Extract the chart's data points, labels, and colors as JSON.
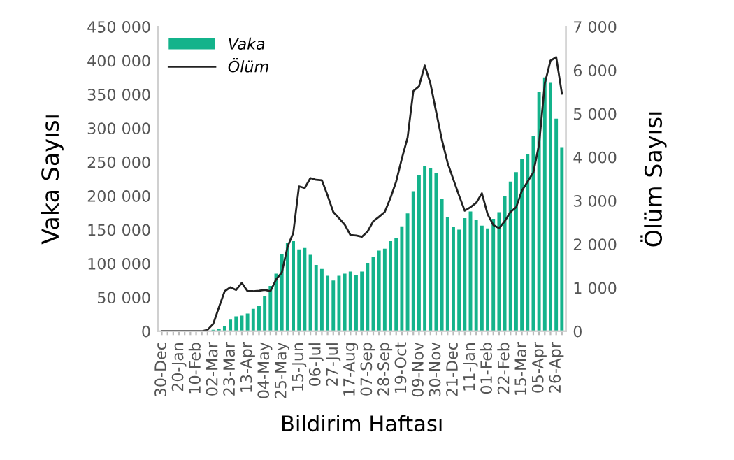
{
  "chart_data": {
    "type": "bar",
    "categories": [
      "30-Dec",
      null,
      null,
      "20-Jan",
      null,
      null,
      "10-Feb",
      null,
      null,
      "02-Mar",
      null,
      null,
      "23-Mar",
      null,
      null,
      "13-Apr",
      null,
      null,
      "04-May",
      null,
      null,
      "25-May",
      null,
      null,
      "15-Jun",
      null,
      null,
      "06-Jul",
      null,
      null,
      "27-Jul",
      null,
      null,
      "17-Aug",
      null,
      null,
      "07-Sep",
      null,
      null,
      "28-Sep",
      null,
      null,
      "19-Oct",
      null,
      null,
      "09-Nov",
      null,
      null,
      "30-Nov",
      null,
      null,
      "21-Dec",
      null,
      null,
      "11-Jan",
      null,
      null,
      "01-Feb",
      null,
      null,
      "22-Feb",
      null,
      null,
      "15-Mar",
      null,
      null,
      "05-Apr",
      null,
      null,
      "26-Apr",
      null
    ],
    "series": [
      {
        "name": "Vaka",
        "color": "#13b38b",
        "values": [
          0,
          0,
          0,
          0,
          0,
          0,
          0,
          0,
          0,
          2000,
          3000,
          8000,
          17000,
          22000,
          23000,
          26000,
          33000,
          37000,
          52000,
          67000,
          85000,
          114000,
          130000,
          133000,
          121000,
          123000,
          113000,
          98000,
          92000,
          82000,
          75000,
          82000,
          85000,
          88000,
          83000,
          88000,
          101000,
          110000,
          119000,
          122000,
          133000,
          138000,
          155000,
          174000,
          207000,
          231000,
          244000,
          241000,
          234000,
          195000,
          169000,
          154000,
          150000,
          167000,
          177000,
          165000,
          156000,
          152000,
          166000,
          176000,
          200000,
          221000,
          235000,
          255000,
          262000,
          289000,
          354000,
          375000,
          367000,
          314000,
          272000
        ]
      },
      {
        "name": "Ölüm",
        "type": "line",
        "axis": "y2",
        "color": "#222222",
        "values": [
          0,
          0,
          0,
          0,
          0,
          0,
          0,
          0,
          30,
          170,
          550,
          920,
          1010,
          950,
          1110,
          920,
          920,
          930,
          950,
          920,
          1190,
          1350,
          1940,
          2260,
          3330,
          3290,
          3520,
          3480,
          3470,
          3120,
          2740,
          2600,
          2450,
          2210,
          2200,
          2170,
          2290,
          2530,
          2630,
          2740,
          3060,
          3440,
          3970,
          4450,
          5520,
          5630,
          6110,
          5690,
          5040,
          4400,
          3870,
          3490,
          3120,
          2770,
          2850,
          2950,
          3170,
          2690,
          2440,
          2370,
          2530,
          2740,
          2850,
          3230,
          3440,
          3650,
          4290,
          5690,
          6220,
          6300,
          5460
        ]
      }
    ],
    "xlabel": "Bildirim Haftası",
    "ylabel": "Vaka Sayısı",
    "y2label": "Ölüm Sayısı",
    "ylim": [
      0,
      450000
    ],
    "yticks": [
      {
        "value": 0,
        "label": "0"
      },
      {
        "value": 50000,
        "label": "50 000"
      },
      {
        "value": 100000,
        "label": "100 000"
      },
      {
        "value": 150000,
        "label": "150 000"
      },
      {
        "value": 200000,
        "label": "200 000"
      },
      {
        "value": 250000,
        "label": "250 000"
      },
      {
        "value": 300000,
        "label": "300 000"
      },
      {
        "value": 350000,
        "label": "350 000"
      },
      {
        "value": 400000,
        "label": "400 000"
      },
      {
        "value": 450000,
        "label": "450 000"
      }
    ],
    "y2lim": [
      0,
      7000
    ],
    "y2ticks": [
      {
        "value": 0,
        "label": "0"
      },
      {
        "value": 1000,
        "label": "1 000"
      },
      {
        "value": 2000,
        "label": "2 000"
      },
      {
        "value": 3000,
        "label": "3 000"
      },
      {
        "value": 4000,
        "label": "4 000"
      },
      {
        "value": 5000,
        "label": "5 000"
      },
      {
        "value": 6000,
        "label": "6 000"
      },
      {
        "value": 7000,
        "label": "7 000"
      }
    ],
    "legend": "top left",
    "grid": false,
    "marker": "none",
    "line_style": "solid"
  }
}
